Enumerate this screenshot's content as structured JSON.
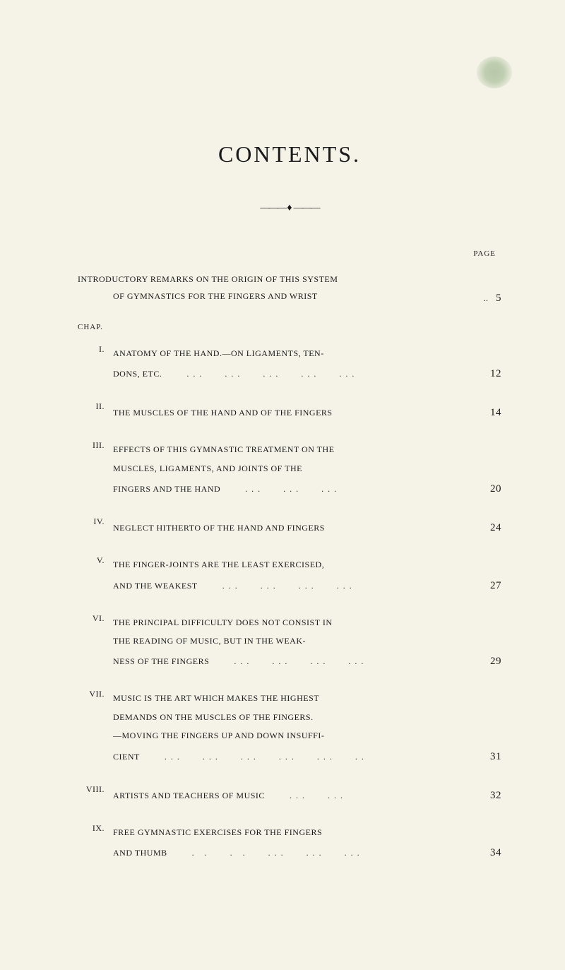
{
  "title": "CONTENTS.",
  "page_label": "PAGE",
  "chap_label": "CHAP.",
  "intro": {
    "line1": "INTRODUCTORY REMARKS ON THE ORIGIN OF THIS SYSTEM",
    "line2": "OF GYMNASTICS FOR THE FINGERS AND WRIST",
    "dots": "..",
    "page": "5"
  },
  "entries": [
    {
      "roman": "I.",
      "lines": [
        "ANATOMY OF THE HAND.—ON LIGAMENTS, TEN-"
      ],
      "last": "DONS, ETC.",
      "dots": "...   ...   ...   ...   ...",
      "page": "12"
    },
    {
      "roman": "II.",
      "lines": [],
      "last": "THE MUSCLES OF THE HAND AND OF THE FINGERS",
      "dots": "",
      "page": "14"
    },
    {
      "roman": "III.",
      "lines": [
        "EFFECTS OF THIS GYMNASTIC TREATMENT ON THE",
        "MUSCLES, LIGAMENTS, AND JOINTS OF THE"
      ],
      "last": "FINGERS AND THE HAND",
      "dots": "...   ...   ...",
      "page": "20"
    },
    {
      "roman": "IV.",
      "lines": [],
      "last": "NEGLECT HITHERTO OF THE HAND AND FINGERS",
      "dots": "",
      "page": "24"
    },
    {
      "roman": "V.",
      "lines": [
        "THE FINGER-JOINTS ARE THE LEAST EXERCISED,"
      ],
      "last": "AND THE WEAKEST",
      "dots": "...   ...   ...   ...",
      "page": "27"
    },
    {
      "roman": "VI.",
      "lines": [
        "THE PRINCIPAL DIFFICULTY DOES NOT CONSIST IN",
        "THE READING OF MUSIC, BUT IN THE WEAK-"
      ],
      "last": "NESS OF THE FINGERS",
      "dots": "...   ...   ...   ...",
      "page": "29"
    },
    {
      "roman": "VII.",
      "lines": [
        "MUSIC IS THE ART WHICH MAKES THE HIGHEST",
        "DEMANDS ON THE MUSCLES OF THE FINGERS.",
        "—MOVING THE FINGERS UP AND DOWN INSUFFI-"
      ],
      "last": "CIENT",
      "dots": "...   ...   ...   ...   ...   ..",
      "page": "31"
    },
    {
      "roman": "VIII.",
      "lines": [],
      "last": "ARTISTS AND TEACHERS OF MUSIC",
      "dots": "...   ...",
      "page": "32"
    },
    {
      "roman": "IX.",
      "lines": [
        "FREE GYMNASTIC EXERCISES FOR THE FINGERS"
      ],
      "last": "AND THUMB",
      "dots": ". .   . .   ...   ...   ...",
      "page": "34"
    }
  ],
  "colors": {
    "background": "#f5f2e8",
    "text": "#1a1a1a",
    "smudge": "#7a9a6a"
  },
  "typography": {
    "title_fontsize": 32,
    "body_fontsize": 12,
    "page_num_fontsize": 15,
    "label_fontsize": 11
  }
}
